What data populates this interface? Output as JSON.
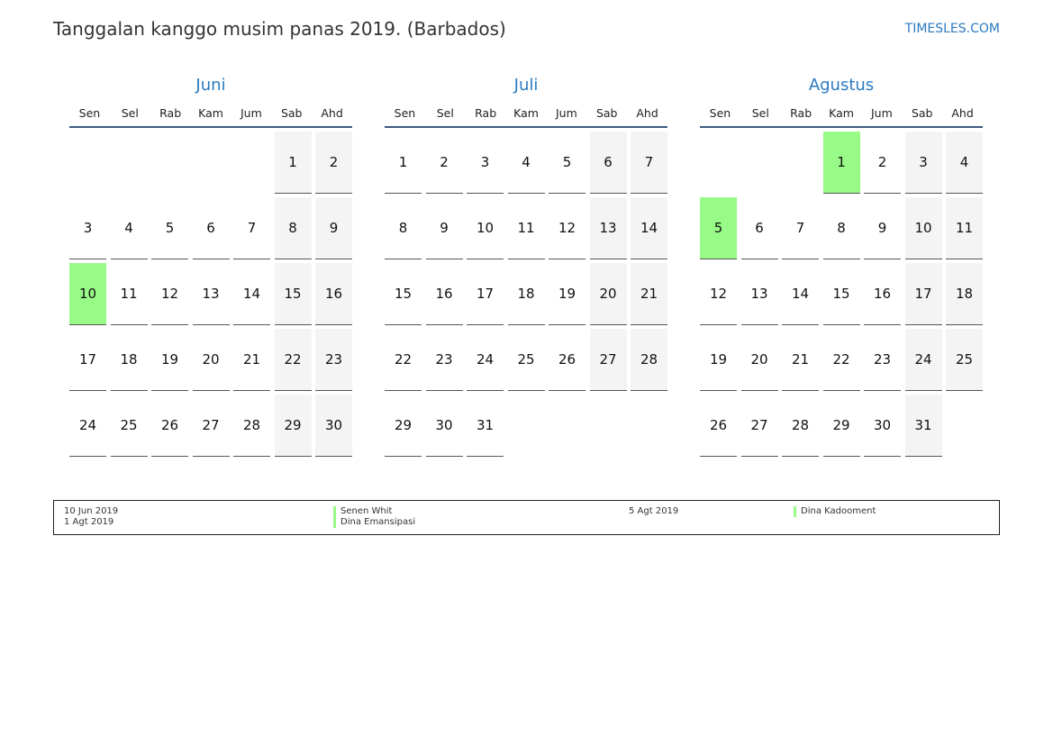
{
  "header": {
    "title": "Tanggalan kanggo musim panas 2019. (Barbados)",
    "site": "TIMESLES.COM"
  },
  "weekdays": [
    "Sen",
    "Sel",
    "Rab",
    "Kam",
    "Jum",
    "Sab",
    "Ahd"
  ],
  "colors": {
    "holiday": "#98fa87",
    "weekend": "#f4f4f4",
    "accent": "#2a7ac0"
  },
  "months": [
    {
      "name": "Juni",
      "start_weekday": "Sab",
      "days": 30,
      "holidays": [
        10
      ]
    },
    {
      "name": "Juli",
      "start_weekday": "Sen",
      "days": 31,
      "holidays": []
    },
    {
      "name": "Agustus",
      "start_weekday": "Kam",
      "days": 31,
      "holidays": [
        1,
        5
      ]
    }
  ],
  "legend": [
    {
      "date": "10 Jun 2019",
      "name": "Senen Whit"
    },
    {
      "date": "1 Agt 2019",
      "name": "Dina Emansipasi"
    },
    {
      "date": "5 Agt 2019",
      "name": "Dina Kadooment"
    }
  ]
}
